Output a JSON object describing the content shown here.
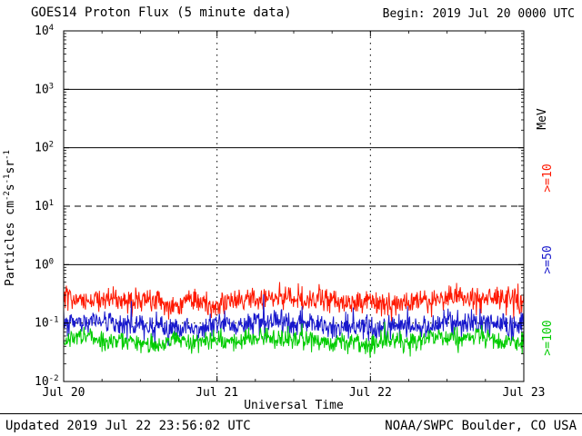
{
  "header": {
    "title": "GOES14 Proton Flux (5 minute data)",
    "begin_label": "Begin: 2019 Jul 20 0000 UTC"
  },
  "footer": {
    "updated": "Updated 2019 Jul 22 23:56:02 UTC",
    "source": "NOAA/SWPC Boulder, CO USA"
  },
  "chart_data": {
    "type": "line",
    "title": "GOES14 Proton Flux (5 minute data)",
    "xlabel": "Universal Time",
    "ylabel": "Particles cm-2 s-1 sr-1",
    "ylabel_parts": [
      {
        "text": "Particles  cm"
      },
      {
        "sup": "-2"
      },
      {
        "text": "s"
      },
      {
        "sup": "-1"
      },
      {
        "text": "sr"
      },
      {
        "sup": "-1"
      }
    ],
    "right_axis_label": "MeV",
    "yscale": "log",
    "ylim": [
      0.01,
      10000
    ],
    "y_ticks": [
      {
        "value": 10000,
        "exp": "4"
      },
      {
        "value": 1000,
        "exp": "3"
      },
      {
        "value": 100,
        "exp": "2"
      },
      {
        "value": 10,
        "exp": "1"
      },
      {
        "value": 1,
        "exp": "0"
      },
      {
        "value": 0.1,
        "exp": "-1"
      },
      {
        "value": 0.01,
        "exp": "-2"
      }
    ],
    "x_ticks": [
      {
        "label": "Jul 20",
        "day": 0
      },
      {
        "label": "Jul 21",
        "day": 1
      },
      {
        "label": "Jul 22",
        "day": 2
      },
      {
        "label": "Jul 23",
        "day": 3
      }
    ],
    "x_range_days": 3,
    "x_start": "2019 Jul 20 0000 UTC",
    "x_end": "2019 Jul 23 0000 UTC",
    "cadence_minutes": 5,
    "points_count": 864,
    "gridlines_h": [
      {
        "value": 1000,
        "style": "solid"
      },
      {
        "value": 100,
        "style": "solid"
      },
      {
        "value": 10,
        "style": "dashed"
      },
      {
        "value": 1,
        "style": "solid"
      },
      {
        "value": 0.1,
        "style": "dotted"
      }
    ],
    "gridlines_v_days": [
      1,
      2
    ],
    "series": [
      {
        "name": ">=10",
        "unit": "MeV",
        "color": "#ff1800",
        "approx_median": 0.24,
        "approx_range": [
          0.13,
          0.55
        ],
        "log10_center": -0.62,
        "log10_sigma": 0.105,
        "spike_prob": 0.008,
        "spike_amp": 0.16,
        "seed": 101
      },
      {
        "name": ">=50",
        "unit": "MeV",
        "color": "#1818cc",
        "approx_median": 0.095,
        "approx_range": [
          0.05,
          0.3
        ],
        "log10_center": -1.03,
        "log10_sigma": 0.105,
        "spike_prob": 0.01,
        "spike_amp": 0.26,
        "seed": 202
      },
      {
        "name": ">=100",
        "unit": "MeV",
        "color": "#00cc00",
        "approx_median": 0.05,
        "approx_range": [
          0.028,
          0.095
        ],
        "log10_center": -1.3,
        "log10_sigma": 0.085,
        "spike_prob": 0.006,
        "spike_amp": 0.12,
        "seed": 303
      }
    ]
  }
}
